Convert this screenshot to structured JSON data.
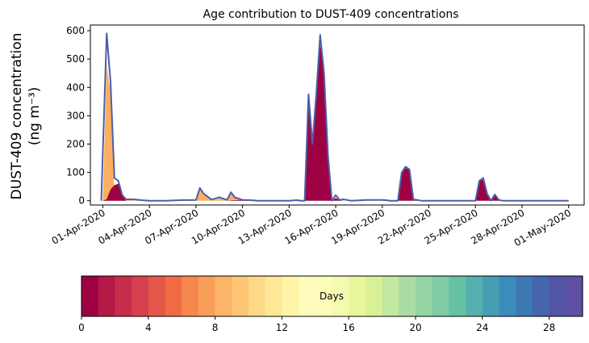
{
  "chart_data": [
    {
      "type": "area",
      "stacked": true,
      "title": "Age contribution to DUST-409 concentrations",
      "ylabel_line1": "DUST-409 concentration",
      "ylabel_line2": "(ng m⁻³)",
      "xlabel": "",
      "ylim": [
        -15,
        620
      ],
      "y_ticks": [
        "0",
        "100",
        "200",
        "300",
        "400",
        "500",
        "600"
      ],
      "y_tick_values": [
        0,
        100,
        200,
        300,
        400,
        500,
        600
      ],
      "x_ticks": [
        "01-Apr-2020",
        "04-Apr-2020",
        "07-Apr-2020",
        "10-Apr-2020",
        "13-Apr-2020",
        "16-Apr-2020",
        "19-Apr-2020",
        "22-Apr-2020",
        "25-Apr-2020",
        "28-Apr-2020",
        "01-May-2020"
      ],
      "x_tick_values": [
        0,
        3,
        6,
        9,
        12,
        15,
        18,
        21,
        24,
        27,
        30
      ],
      "xlim": [
        -0.8,
        31.0
      ],
      "total_line_color": "#4a5fa8",
      "series": [
        {
          "age_days": "0-1",
          "color": "#9e0142",
          "points": [
            [
              0,
              0
            ],
            [
              0.25,
              5
            ],
            [
              0.5,
              40
            ],
            [
              0.75,
              55
            ],
            [
              1.0,
              60
            ],
            [
              1.25,
              20
            ],
            [
              1.5,
              0
            ],
            [
              8,
              0
            ],
            [
              8.5,
              2
            ],
            [
              9,
              3
            ],
            [
              9.5,
              0
            ],
            [
              12,
              0
            ],
            [
              12.5,
              2
            ],
            [
              12.75,
              0
            ],
            [
              13,
              0
            ],
            [
              13.25,
              370
            ],
            [
              13.5,
              200
            ],
            [
              13.75,
              370
            ],
            [
              14,
              550
            ],
            [
              14.25,
              470
            ],
            [
              14.5,
              160
            ],
            [
              14.75,
              0
            ],
            [
              15,
              10
            ],
            [
              15.25,
              2
            ],
            [
              15.5,
              0
            ],
            [
              18,
              0
            ],
            [
              18.25,
              2
            ],
            [
              18.5,
              0
            ],
            [
              19,
              0
            ],
            [
              19.25,
              95
            ],
            [
              19.5,
              115
            ],
            [
              19.75,
              110
            ],
            [
              20,
              5
            ],
            [
              20.25,
              2
            ],
            [
              20.5,
              0
            ],
            [
              24,
              0
            ],
            [
              24.25,
              68
            ],
            [
              24.5,
              75
            ],
            [
              24.75,
              20
            ],
            [
              25,
              0
            ],
            [
              25.25,
              18
            ],
            [
              25.5,
              3
            ],
            [
              25.75,
              0
            ],
            [
              30,
              0
            ]
          ]
        },
        {
          "age_days": "2-10",
          "color": "#fdae61",
          "points": [
            [
              0,
              0
            ],
            [
              0.25,
              480
            ],
            [
              0.5,
              380
            ],
            [
              0.75,
              20
            ],
            [
              1.0,
              0
            ],
            [
              1.25,
              0
            ],
            [
              1.5,
              5
            ],
            [
              2,
              5
            ],
            [
              2.5,
              1
            ],
            [
              3,
              0
            ],
            [
              4,
              0
            ],
            [
              5,
              2
            ],
            [
              6,
              3
            ],
            [
              6.25,
              40
            ],
            [
              6.5,
              22
            ],
            [
              7,
              2
            ],
            [
              7.25,
              4
            ],
            [
              7.5,
              8
            ],
            [
              8,
              1
            ],
            [
              8.25,
              25
            ],
            [
              8.5,
              10
            ],
            [
              9,
              0
            ],
            [
              10,
              0
            ],
            [
              12,
              0
            ]
          ]
        }
      ],
      "total": [
        [
          -0.1,
          0
        ],
        [
          0.25,
          590
        ],
        [
          0.5,
          420
        ],
        [
          0.75,
          80
        ],
        [
          1.0,
          70
        ],
        [
          1.25,
          20
        ],
        [
          1.5,
          5
        ],
        [
          2,
          5
        ],
        [
          2.5,
          2
        ],
        [
          3,
          0
        ],
        [
          4,
          0
        ],
        [
          5,
          2
        ],
        [
          6,
          3
        ],
        [
          6.25,
          45
        ],
        [
          6.5,
          25
        ],
        [
          7,
          4
        ],
        [
          7.25,
          8
        ],
        [
          7.5,
          12
        ],
        [
          8,
          3
        ],
        [
          8.25,
          30
        ],
        [
          8.5,
          12
        ],
        [
          9,
          3
        ],
        [
          9.5,
          2
        ],
        [
          10,
          0
        ],
        [
          12,
          0
        ],
        [
          12.5,
          2
        ],
        [
          12.75,
          0
        ],
        [
          13,
          0
        ],
        [
          13.25,
          375
        ],
        [
          13.5,
          200
        ],
        [
          13.75,
          375
        ],
        [
          14,
          585
        ],
        [
          14.25,
          450
        ],
        [
          14.5,
          160
        ],
        [
          14.75,
          0
        ],
        [
          15,
          20
        ],
        [
          15.25,
          3
        ],
        [
          15.5,
          5
        ],
        [
          16,
          0
        ],
        [
          17,
          3
        ],
        [
          18,
          3
        ],
        [
          18.25,
          2
        ],
        [
          18.5,
          0
        ],
        [
          19,
          0
        ],
        [
          19.25,
          100
        ],
        [
          19.5,
          120
        ],
        [
          19.75,
          110
        ],
        [
          20,
          5
        ],
        [
          20.25,
          3
        ],
        [
          20.5,
          0
        ],
        [
          24,
          0
        ],
        [
          24.25,
          70
        ],
        [
          24.5,
          80
        ],
        [
          24.75,
          25
        ],
        [
          25,
          0
        ],
        [
          25.25,
          22
        ],
        [
          25.5,
          3
        ],
        [
          25.75,
          0
        ],
        [
          30,
          0
        ]
      ]
    },
    {
      "type": "heatmap",
      "role": "colorbar",
      "label": "Days",
      "range": [
        0,
        30
      ],
      "bins": 30,
      "ticks": [
        "0",
        "4",
        "8",
        "12",
        "16",
        "20",
        "24",
        "28"
      ],
      "tick_values": [
        0,
        4,
        8,
        12,
        16,
        20,
        24,
        28
      ],
      "colors": [
        "#9e0142",
        "#b41947",
        "#c72c4a",
        "#d6404e",
        "#e55749",
        "#f06b44",
        "#f5874e",
        "#f99e59",
        "#fcb466",
        "#fdc574",
        "#fed987",
        "#fee797",
        "#fff4a8",
        "#fffbbd",
        "#fbfdb8",
        "#f4fab0",
        "#e8f69c",
        "#d9f097",
        "#c1e7a0",
        "#aadda4",
        "#94d4a4",
        "#7ecba4",
        "#66c2a5",
        "#56b0ad",
        "#469eb3",
        "#3b8cbb",
        "#3d78b4",
        "#4665ac",
        "#5254a4",
        "#5e4fa2"
      ]
    }
  ]
}
